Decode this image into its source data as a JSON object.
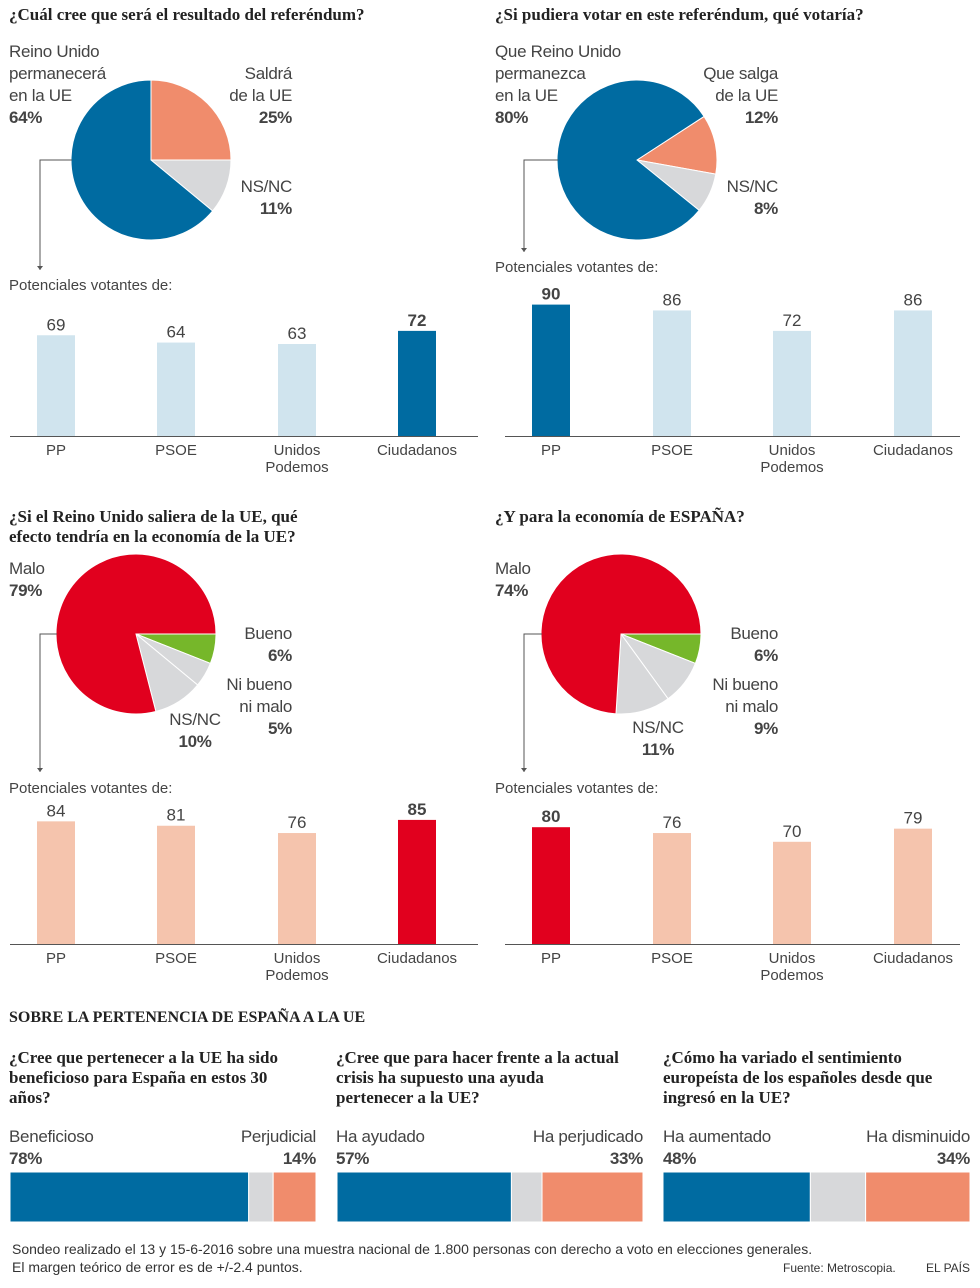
{
  "colors": {
    "blue": "#006ba1",
    "salmon": "#f08c6c",
    "gray": "#d7d8da",
    "light_blue": "#d0e4ee",
    "red": "#e1001e",
    "green": "#76b72a",
    "light_salmon": "#f5c4ad"
  },
  "panels": [
    {
      "question": "¿Cuál cree que será el resultado del referéndum?",
      "slices": [
        {
          "label": "Saldrá de la UE",
          "value": 25,
          "color": "salmon",
          "l1": "Saldrá",
          "l2": "de la UE",
          "pct": "25%"
        },
        {
          "label": "NS/NC",
          "value": 11,
          "color": "gray",
          "l1": "NS/NC",
          "pct": "11%"
        },
        {
          "label": "Reino Unido permanecerá en la UE",
          "value": 64,
          "color": "blue",
          "l1": "Reino Unido",
          "l2": "permanecerá",
          "l3": "en la UE",
          "pct": "64%"
        }
      ],
      "subtitle": "Potenciales votantes de:",
      "bars": {
        "categories": [
          "PP",
          "PSOE",
          "Unidos Podemos",
          "Ciudadanos"
        ],
        "values": [
          69,
          64,
          63,
          72
        ],
        "highlight": 3,
        "base": "light_blue",
        "accent": "blue"
      }
    },
    {
      "question": "¿Si pudiera votar en este referéndum, qué votaría?",
      "slices": [
        {
          "label": "Que salga de la UE",
          "value": 12,
          "color": "salmon",
          "l1": "Que salga",
          "l2": "de la UE",
          "pct": "12%"
        },
        {
          "label": "NS/NC",
          "value": 8,
          "color": "gray",
          "l1": "NS/NC",
          "pct": "8%"
        },
        {
          "label": "Que Reino Unido permanezca en la UE",
          "value": 80,
          "color": "blue",
          "l1": "Que Reino Unido",
          "l2": "permanezca",
          "l3": "en la UE",
          "pct": "80%"
        }
      ],
      "subtitle": "Potenciales votantes de:",
      "bars": {
        "categories": [
          "PP",
          "PSOE",
          "Unidos Podemos",
          "Ciudadanos"
        ],
        "values": [
          90,
          86,
          72,
          86
        ],
        "highlight": 0,
        "base": "light_blue",
        "accent": "blue"
      }
    },
    {
      "question": "¿Si el Reino Unido saliera de la UE, qué efecto tendría en la economía de la UE?",
      "q1": "¿Si el Reino Unido saliera de la UE, qué",
      "q2": "efecto tendría en la economía de la UE?",
      "slices": [
        {
          "label": "Bueno",
          "value": 6,
          "color": "green",
          "l1": "Bueno",
          "pct": "6%"
        },
        {
          "label": "Ni bueno ni malo",
          "value": 5,
          "color": "gray",
          "l1": "Ni bueno",
          "l2": "ni malo",
          "pct": "5%"
        },
        {
          "label": "NS/NC",
          "value": 10,
          "color": "gray",
          "l1": "NS/NC",
          "pct": "10%"
        },
        {
          "label": "Malo",
          "value": 79,
          "color": "red",
          "l1": "Malo",
          "pct": "79%"
        }
      ],
      "subtitle": "Potenciales votantes de:",
      "bars": {
        "categories": [
          "PP",
          "PSOE",
          "Unidos Podemos",
          "Ciudadanos"
        ],
        "values": [
          84,
          81,
          76,
          85
        ],
        "highlight": 3,
        "base": "light_salmon",
        "accent": "red"
      }
    },
    {
      "question": "¿Y para la economía de ESPAÑA?",
      "slices": [
        {
          "label": "Bueno",
          "value": 6,
          "color": "green",
          "l1": "Bueno",
          "pct": "6%"
        },
        {
          "label": "Ni bueno ni malo",
          "value": 9,
          "color": "gray",
          "l1": "Ni bueno",
          "l2": "ni malo",
          "pct": "9%"
        },
        {
          "label": "NS/NC",
          "value": 11,
          "color": "gray",
          "l1": "NS/NC",
          "pct": "11%"
        },
        {
          "label": "Malo",
          "value": 74,
          "color": "red",
          "l1": "Malo",
          "pct": "74%"
        }
      ],
      "subtitle": "Potenciales votantes de:",
      "bars": {
        "categories": [
          "PP",
          "PSOE",
          "Unidos Podemos",
          "Ciudadanos"
        ],
        "values": [
          80,
          76,
          70,
          79
        ],
        "highlight": 0,
        "base": "light_salmon",
        "accent": "red"
      }
    }
  ],
  "section_title": "SOBRE LA PERTENENCIA DE ESPAÑA A LA UE",
  "stacked": [
    {
      "q": [
        "¿Cree que pertenecer a la UE ha sido",
        "beneficioso para España en estos 30",
        "años?"
      ],
      "left": "Beneficioso",
      "left_pct": "78%",
      "right": "Perjudicial",
      "right_pct": "14%",
      "values": [
        78,
        8,
        14
      ]
    },
    {
      "q": [
        "¿Cree que para hacer frente a la actual",
        "crisis ha supuesto una ayuda",
        "pertenecer a la UE?"
      ],
      "left": "Ha ayudado",
      "left_pct": "57%",
      "right": "Ha perjudicado",
      "right_pct": "33%",
      "values": [
        57,
        10,
        33
      ]
    },
    {
      "q": [
        "¿Cómo ha variado el sentimiento",
        "europeísta de los españoles desde que",
        "ingresó en la UE?"
      ],
      "left": "Ha aumentado",
      "left_pct": "48%",
      "right": "Ha disminuido",
      "right_pct": "34%",
      "values": [
        48,
        18,
        34
      ]
    }
  ],
  "footer": {
    "line1": "Sondeo realizado el 13 y 15-6-2016 sobre una muestra nacional de 1.800 personas con derecho a voto en elecciones generales.",
    "line2": "El margen teórico de error es de +/-2.4 puntos.",
    "source": "Fuente: Metroscopia.",
    "brand": "EL PAÍS"
  }
}
